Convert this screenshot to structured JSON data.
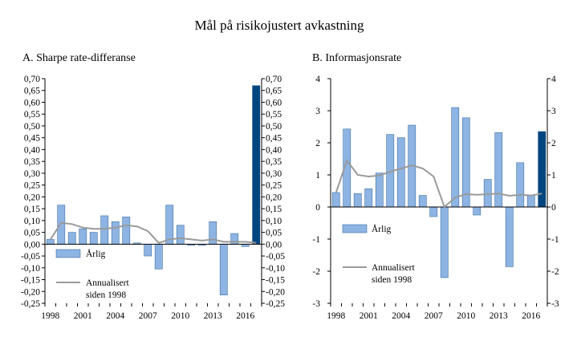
{
  "title": "Mål på risikojustert avkastning",
  "colors": {
    "bar": "#8db4e2",
    "bar_stroke": "#3d6fa5",
    "highlight": "#00457e",
    "line": "#9a9a9a",
    "axis": "#000000"
  },
  "chart_data": [
    {
      "type": "bar",
      "title": "A. Sharpe rate-differanse",
      "xlabel": "",
      "ylabel": "",
      "ylim": [
        -0.25,
        0.7
      ],
      "yticks": [
        "-0,25",
        "-0,20",
        "-0,15",
        "-0,10",
        "-0,05",
        "0,00",
        "0,05",
        "0,10",
        "0,15",
        "0,20",
        "0,25",
        "0,30",
        "0,35",
        "0,40",
        "0,45",
        "0,50",
        "0,55",
        "0,60",
        "0,65",
        "0,70"
      ],
      "ytick_values": [
        -0.25,
        -0.2,
        -0.15,
        -0.1,
        -0.05,
        0,
        0.05,
        0.1,
        0.15,
        0.2,
        0.25,
        0.3,
        0.35,
        0.4,
        0.45,
        0.5,
        0.55,
        0.6,
        0.65,
        0.7
      ],
      "categories": [
        1998,
        1999,
        2000,
        2001,
        2002,
        2003,
        2004,
        2005,
        2006,
        2007,
        2008,
        2009,
        2010,
        2011,
        2012,
        2013,
        2014,
        2015,
        2016,
        2017
      ],
      "xticks": [
        "1998",
        "2001",
        "2004",
        "2007",
        "2010",
        "2013",
        "2016"
      ],
      "highlight_last": true,
      "series": [
        {
          "name": "Årlig",
          "kind": "bar",
          "values": [
            0.02,
            0.165,
            0.05,
            0.065,
            0.05,
            0.12,
            0.095,
            0.115,
            0.005,
            -0.05,
            -0.105,
            0.165,
            0.08,
            -0.005,
            -0.005,
            0.095,
            -0.215,
            0.045,
            -0.01,
            0.67
          ]
        },
        {
          "name": "Annualisert siden 1998",
          "kind": "line",
          "values": [
            0.02,
            0.09,
            0.085,
            0.07,
            0.065,
            0.065,
            0.07,
            0.08,
            0.075,
            0.055,
            0.005,
            0.02,
            0.025,
            0.02,
            0.015,
            0.02,
            0.01,
            0.01,
            0.01,
            0.005
          ]
        }
      ],
      "legend": [
        {
          "kind": "bar",
          "label": "Årlig"
        },
        {
          "kind": "line",
          "lines": [
            "Annualisert",
            "siden 1998"
          ]
        }
      ]
    },
    {
      "type": "bar",
      "title": "B. Informasjonsrate",
      "xlabel": "",
      "ylabel": "",
      "ylim": [
        -3,
        4
      ],
      "yticks": [
        "-3",
        "-2",
        "-1",
        "0",
        "1",
        "2",
        "3",
        "4"
      ],
      "ytick_values": [
        -3,
        -2,
        -1,
        0,
        1,
        2,
        3,
        4
      ],
      "categories": [
        1998,
        1999,
        2000,
        2001,
        2002,
        2003,
        2004,
        2005,
        2006,
        2007,
        2008,
        2009,
        2010,
        2011,
        2012,
        2013,
        2014,
        2015,
        2016,
        2017
      ],
      "xticks": [
        "1998",
        "2001",
        "2004",
        "2007",
        "2010",
        "2013",
        "2016"
      ],
      "highlight_last": true,
      "series": [
        {
          "name": "Årlig",
          "kind": "bar",
          "values": [
            0.45,
            2.43,
            0.42,
            0.57,
            1.06,
            2.26,
            2.16,
            2.55,
            0.36,
            -0.3,
            -2.2,
            3.1,
            2.78,
            -0.25,
            0.86,
            2.32,
            -1.86,
            1.38,
            0.36,
            2.35
          ]
        },
        {
          "name": "Annualisert siden 1998",
          "kind": "line",
          "values": [
            0.45,
            1.45,
            1.0,
            0.95,
            0.98,
            1.1,
            1.2,
            1.3,
            1.2,
            0.95,
            0.0,
            0.3,
            0.4,
            0.38,
            0.4,
            0.42,
            0.35,
            0.38,
            0.36,
            0.42
          ]
        }
      ],
      "legend": [
        {
          "kind": "bar",
          "label": "Årlig"
        },
        {
          "kind": "line",
          "lines": [
            "Annualisert",
            "siden 1998"
          ]
        }
      ]
    }
  ]
}
